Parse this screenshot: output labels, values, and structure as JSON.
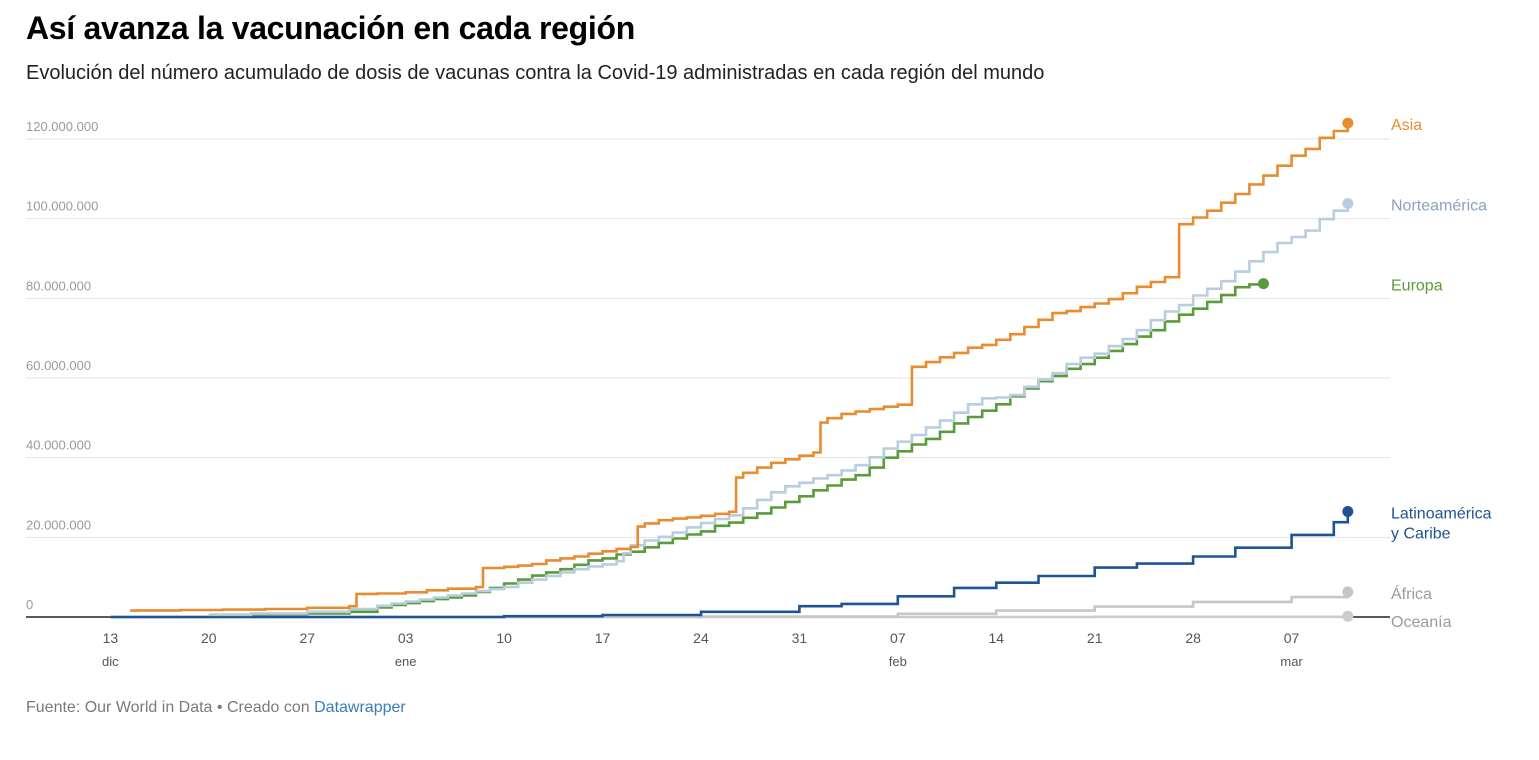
{
  "header": {
    "title": "Así avanza la vacunación en cada región",
    "subtitle": "Evolución del número acumulado de dosis de vacunas contra la Covid-19 administradas en cada región del mundo"
  },
  "footer": {
    "source": "Fuente: Our World in Data • Creado con ",
    "link": "Datawrapper"
  },
  "chart_data": {
    "type": "line",
    "step": true,
    "title": "Así avanza la vacunación en cada región",
    "xlabel": "",
    "ylabel": "",
    "ylim": [
      0,
      120000000
    ],
    "grid": true,
    "y_ticks": [
      {
        "value": 0,
        "label": "0"
      },
      {
        "value": 20000000,
        "label": "20.000.000"
      },
      {
        "value": 40000000,
        "label": "40.000.000"
      },
      {
        "value": 60000000,
        "label": "60.000.000"
      },
      {
        "value": 80000000,
        "label": "80.000.000"
      },
      {
        "value": 100000000,
        "label": "100.000.000"
      },
      {
        "value": 120000000,
        "label": "120.000.000"
      }
    ],
    "x_unit": "days since 13 dic",
    "xlim": [
      -6,
      91
    ],
    "x_ticks": [
      {
        "day": 0,
        "label": "13",
        "month": "dic"
      },
      {
        "day": 7,
        "label": "20",
        "month": ""
      },
      {
        "day": 14,
        "label": "27",
        "month": ""
      },
      {
        "day": 21,
        "label": "03",
        "month": "ene"
      },
      {
        "day": 28,
        "label": "10",
        "month": ""
      },
      {
        "day": 35,
        "label": "17",
        "month": ""
      },
      {
        "day": 42,
        "label": "24",
        "month": ""
      },
      {
        "day": 49,
        "label": "31",
        "month": ""
      },
      {
        "day": 56,
        "label": "07",
        "month": "feb"
      },
      {
        "day": 63,
        "label": "14",
        "month": ""
      },
      {
        "day": 70,
        "label": "21",
        "month": ""
      },
      {
        "day": 77,
        "label": "28",
        "month": ""
      },
      {
        "day": 84,
        "label": "07",
        "month": "mar"
      }
    ],
    "series": [
      {
        "name": "Asia",
        "label_lines": [
          "Asia"
        ],
        "color": "#e88c30",
        "label_color": "#e88c30",
        "points": [
          [
            1.4,
            1600000
          ],
          [
            2,
            1650000
          ],
          [
            5,
            1750000
          ],
          [
            8,
            1850000
          ],
          [
            11,
            2000000
          ],
          [
            14,
            2300000
          ],
          [
            17,
            2700000
          ],
          [
            17.5,
            5800000
          ],
          [
            19,
            5900000
          ],
          [
            21,
            6200000
          ],
          [
            22.5,
            6700000
          ],
          [
            24,
            7100000
          ],
          [
            26,
            7500000
          ],
          [
            26.5,
            12300000
          ],
          [
            28,
            12600000
          ],
          [
            29,
            12900000
          ],
          [
            30,
            13300000
          ],
          [
            31,
            14200000
          ],
          [
            32,
            14700000
          ],
          [
            33,
            15200000
          ],
          [
            34,
            15900000
          ],
          [
            35,
            16500000
          ],
          [
            36,
            17100000
          ],
          [
            37,
            17600000
          ],
          [
            37.5,
            22700000
          ],
          [
            38,
            23500000
          ],
          [
            39,
            24300000
          ],
          [
            40,
            24700000
          ],
          [
            41,
            25000000
          ],
          [
            42,
            25400000
          ],
          [
            43,
            25900000
          ],
          [
            44,
            26400000
          ],
          [
            44.5,
            35000000
          ],
          [
            45,
            36200000
          ],
          [
            46,
            37500000
          ],
          [
            47,
            38700000
          ],
          [
            48,
            39600000
          ],
          [
            49,
            40500000
          ],
          [
            50,
            41300000
          ],
          [
            50.5,
            48800000
          ],
          [
            51,
            49900000
          ],
          [
            52,
            51000000
          ],
          [
            53,
            51600000
          ],
          [
            54,
            52200000
          ],
          [
            55,
            52800000
          ],
          [
            56,
            53300000
          ],
          [
            57,
            62800000
          ],
          [
            58,
            64000000
          ],
          [
            59,
            65200000
          ],
          [
            60,
            66300000
          ],
          [
            61,
            67600000
          ],
          [
            62,
            68300000
          ],
          [
            63,
            69600000
          ],
          [
            64,
            71000000
          ],
          [
            65,
            72800000
          ],
          [
            66,
            74600000
          ],
          [
            67,
            76300000
          ],
          [
            68,
            76800000
          ],
          [
            69,
            77800000
          ],
          [
            70,
            78700000
          ],
          [
            71,
            79800000
          ],
          [
            72,
            81300000
          ],
          [
            73,
            82900000
          ],
          [
            74,
            84100000
          ],
          [
            75,
            85300000
          ],
          [
            76,
            98600000
          ],
          [
            77,
            100300000
          ],
          [
            78,
            102000000
          ],
          [
            79,
            104000000
          ],
          [
            80,
            106200000
          ],
          [
            81,
            108600000
          ],
          [
            82,
            110800000
          ],
          [
            83,
            113300000
          ],
          [
            84,
            115800000
          ],
          [
            85,
            117500000
          ],
          [
            86,
            120300000
          ],
          [
            87,
            122000000
          ],
          [
            88,
            124000000
          ]
        ]
      },
      {
        "name": "Norteamérica",
        "label_lines": [
          "Norteamérica"
        ],
        "color": "#b9cde0",
        "label_color": "#8aa2bd",
        "points": [
          [
            7,
            600000
          ],
          [
            10,
            900000
          ],
          [
            14,
            1300000
          ],
          [
            17,
            2000000
          ],
          [
            19,
            2800000
          ],
          [
            20,
            3400000
          ],
          [
            21,
            3900000
          ],
          [
            22,
            4400000
          ],
          [
            23,
            4900000
          ],
          [
            24,
            5400000
          ],
          [
            25,
            5900000
          ],
          [
            26,
            6500000
          ],
          [
            27,
            7000000
          ],
          [
            28,
            7500000
          ],
          [
            29,
            8600000
          ],
          [
            30,
            9400000
          ],
          [
            31,
            10300000
          ],
          [
            32,
            11200000
          ],
          [
            33,
            12000000
          ],
          [
            34,
            12700000
          ],
          [
            35,
            13200000
          ],
          [
            36,
            14000000
          ],
          [
            36.5,
            16000000
          ],
          [
            37,
            18000000
          ],
          [
            38,
            19200000
          ],
          [
            39,
            20100000
          ],
          [
            40,
            21200000
          ],
          [
            41,
            22500000
          ],
          [
            42,
            23600000
          ],
          [
            43,
            24600000
          ],
          [
            44,
            25500000
          ],
          [
            45,
            27300000
          ],
          [
            46,
            29400000
          ],
          [
            47,
            31300000
          ],
          [
            48,
            32800000
          ],
          [
            49,
            33700000
          ],
          [
            50,
            34800000
          ],
          [
            51,
            35600000
          ],
          [
            52,
            36800000
          ],
          [
            53,
            38100000
          ],
          [
            54,
            40100000
          ],
          [
            55,
            42300000
          ],
          [
            56,
            44000000
          ],
          [
            57,
            45700000
          ],
          [
            58,
            47600000
          ],
          [
            59,
            49300000
          ],
          [
            60,
            51300000
          ],
          [
            61,
            53400000
          ],
          [
            62,
            54900000
          ],
          [
            63,
            55100000
          ],
          [
            64,
            55700000
          ],
          [
            65,
            57800000
          ],
          [
            66,
            59600000
          ],
          [
            67,
            61200000
          ],
          [
            68,
            63500000
          ],
          [
            69,
            65100000
          ],
          [
            70,
            66100000
          ],
          [
            71,
            68000000
          ],
          [
            72,
            69800000
          ],
          [
            73,
            72000000
          ],
          [
            74,
            74500000
          ],
          [
            75,
            76700000
          ],
          [
            76,
            78300000
          ],
          [
            77,
            80700000
          ],
          [
            78,
            82400000
          ],
          [
            79,
            84300000
          ],
          [
            80,
            86700000
          ],
          [
            81,
            89300000
          ],
          [
            82,
            91600000
          ],
          [
            83,
            93900000
          ],
          [
            84,
            95400000
          ],
          [
            85,
            97000000
          ],
          [
            86,
            99900000
          ],
          [
            87,
            102000000
          ],
          [
            88,
            103800000
          ]
        ]
      },
      {
        "name": "Europa",
        "label_lines": [
          "Europa"
        ],
        "color": "#5a9b3c",
        "label_color": "#5a9b3c",
        "points": [
          [
            7,
            500000
          ],
          [
            10,
            700000
          ],
          [
            14,
            900000
          ],
          [
            17,
            1300000
          ],
          [
            19,
            2400000
          ],
          [
            20,
            3000000
          ],
          [
            21,
            3500000
          ],
          [
            22,
            4000000
          ],
          [
            23,
            4500000
          ],
          [
            24,
            4900000
          ],
          [
            25,
            5400000
          ],
          [
            26,
            6300000
          ],
          [
            27,
            7300000
          ],
          [
            28,
            8400000
          ],
          [
            29,
            9400000
          ],
          [
            30,
            10400000
          ],
          [
            31,
            11200000
          ],
          [
            32,
            12000000
          ],
          [
            33,
            13100000
          ],
          [
            34,
            14200000
          ],
          [
            35,
            14700000
          ],
          [
            36,
            15700000
          ],
          [
            37,
            16400000
          ],
          [
            38,
            17500000
          ],
          [
            39,
            18600000
          ],
          [
            40,
            19700000
          ],
          [
            41,
            20700000
          ],
          [
            42,
            21500000
          ],
          [
            43,
            22900000
          ],
          [
            44,
            23700000
          ],
          [
            45,
            24900000
          ],
          [
            46,
            26000000
          ],
          [
            47,
            27500000
          ],
          [
            48,
            28900000
          ],
          [
            49,
            30300000
          ],
          [
            50,
            31800000
          ],
          [
            51,
            33000000
          ],
          [
            52,
            34500000
          ],
          [
            53,
            35600000
          ],
          [
            54,
            37500000
          ],
          [
            55,
            40000000
          ],
          [
            56,
            41600000
          ],
          [
            57,
            43300000
          ],
          [
            58,
            44700000
          ],
          [
            59,
            46500000
          ],
          [
            60,
            48600000
          ],
          [
            61,
            50200000
          ],
          [
            62,
            51800000
          ],
          [
            63,
            53400000
          ],
          [
            64,
            55400000
          ],
          [
            65,
            57400000
          ],
          [
            66,
            59200000
          ],
          [
            67,
            60500000
          ],
          [
            68,
            62300000
          ],
          [
            69,
            63500000
          ],
          [
            70,
            65100000
          ],
          [
            71,
            66800000
          ],
          [
            72,
            68500000
          ],
          [
            73,
            70400000
          ],
          [
            74,
            72000000
          ],
          [
            75,
            74200000
          ],
          [
            76,
            75900000
          ],
          [
            77,
            77400000
          ],
          [
            78,
            79100000
          ],
          [
            79,
            80800000
          ],
          [
            80,
            82800000
          ],
          [
            81,
            83500000
          ],
          [
            82,
            83700000
          ]
        ]
      },
      {
        "name": "Latinoamérica y Caribe",
        "label_lines": [
          "Latinoamérica",
          "y Caribe"
        ],
        "color": "#1e5394",
        "label_color": "#1e5394",
        "points": [
          [
            0,
            0
          ],
          [
            28,
            200000
          ],
          [
            35,
            500000
          ],
          [
            42,
            1300000
          ],
          [
            49,
            2700000
          ],
          [
            52,
            3300000
          ],
          [
            56,
            5200000
          ],
          [
            60,
            7300000
          ],
          [
            63,
            8600000
          ],
          [
            66,
            10300000
          ],
          [
            70,
            12400000
          ],
          [
            73,
            13400000
          ],
          [
            77,
            15200000
          ],
          [
            80,
            17400000
          ],
          [
            84,
            20600000
          ],
          [
            87,
            23800000
          ],
          [
            88,
            26500000
          ]
        ]
      },
      {
        "name": "África",
        "label_lines": [
          "África"
        ],
        "color": "#c6c6c6",
        "label_color": "#9b9b9b",
        "points": [
          [
            0,
            0
          ],
          [
            42,
            100000
          ],
          [
            56,
            800000
          ],
          [
            63,
            1600000
          ],
          [
            70,
            2600000
          ],
          [
            77,
            3800000
          ],
          [
            84,
            5000000
          ],
          [
            88,
            6300000
          ]
        ]
      },
      {
        "name": "Oceanía",
        "label_lines": [
          "Oceanía"
        ],
        "color": "#cccccc",
        "label_color": "#9b9b9b",
        "points": [
          [
            0,
            0
          ],
          [
            70,
            50000
          ],
          [
            88,
            200000
          ]
        ]
      }
    ]
  }
}
